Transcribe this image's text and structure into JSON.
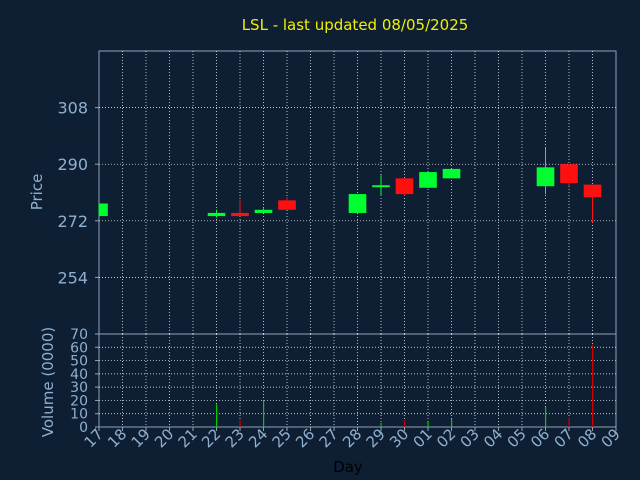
{
  "chart_data": {
    "type": "candlestick",
    "title": "LSL - last updated 08/05/2025",
    "xlabel": "Day",
    "x_ticks": [
      "17",
      "18",
      "19",
      "20",
      "21",
      "22",
      "23",
      "24",
      "25",
      "26",
      "27",
      "28",
      "29",
      "30",
      "01",
      "02",
      "03",
      "04",
      "05",
      "06",
      "07",
      "08",
      "09"
    ],
    "price_panel": {
      "ylabel": "Price",
      "ylim": [
        236,
        326
      ],
      "yticks": [
        "308",
        "290",
        "272",
        "254"
      ],
      "grid": true,
      "candles": [
        {
          "day": "17",
          "open": 273.5,
          "high": 277.5,
          "low": 273.5,
          "close": 277.5
        },
        {
          "day": "22",
          "open": 273.5,
          "high": 275.5,
          "low": 273.0,
          "close": 274.5
        },
        {
          "day": "23",
          "open": 274.5,
          "high": 278.5,
          "low": 273.5,
          "close": 273.5
        },
        {
          "day": "24",
          "open": 274.5,
          "high": 276.0,
          "low": 274.5,
          "close": 275.5
        },
        {
          "day": "25",
          "open": 278.5,
          "high": 279.5,
          "low": 275.5,
          "close": 275.5
        },
        {
          "day": "28",
          "open": 274.5,
          "high": 280.5,
          "low": 274.5,
          "close": 280.5
        },
        {
          "day": "29",
          "open": 283.0,
          "high": 286.5,
          "low": 280.0,
          "close": 283.0
        },
        {
          "day": "30",
          "open": 285.5,
          "high": 285.5,
          "low": 280.0,
          "close": 280.5
        },
        {
          "day": "01",
          "open": 282.5,
          "high": 287.5,
          "low": 282.5,
          "close": 287.5
        },
        {
          "day": "02",
          "open": 285.5,
          "high": 288.5,
          "low": 285.5,
          "close": 288.5
        },
        {
          "day": "06",
          "open": 283.0,
          "high": 295.5,
          "low": 280.5,
          "close": 289.0
        },
        {
          "day": "07",
          "open": 290.0,
          "high": 290.0,
          "low": 283.0,
          "close": 284.0
        },
        {
          "day": "08",
          "open": 283.5,
          "high": 283.5,
          "low": 271.5,
          "close": 279.5
        }
      ]
    },
    "volume_panel": {
      "ylabel": "Volume (0000)",
      "ylim": [
        0,
        70
      ],
      "yticks": [
        "70",
        "60",
        "50",
        "40",
        "30",
        "20",
        "10",
        "0"
      ],
      "grid": true,
      "bars": [
        {
          "day": "22",
          "value": 17,
          "color": "#00cc00"
        },
        {
          "day": "23",
          "value": 5,
          "color": "#cc0000"
        },
        {
          "day": "24",
          "value": 20,
          "color": "#00cc00"
        },
        {
          "day": "29",
          "value": 3,
          "color": "#00cc00"
        },
        {
          "day": "30",
          "value": 5,
          "color": "#cc0000"
        },
        {
          "day": "01",
          "value": 4,
          "color": "#00cc00"
        },
        {
          "day": "02",
          "value": 6,
          "color": "#00cc00"
        },
        {
          "day": "06",
          "value": 15,
          "color": "#00cc00"
        },
        {
          "day": "07",
          "value": 7,
          "color": "#cc0000"
        },
        {
          "day": "08",
          "value": 62,
          "color": "#cc0000"
        }
      ]
    },
    "colors": {
      "up": "#00ff30",
      "down": "#ff1010",
      "background": "#0f1f33",
      "axis_text": "#8fb0d0",
      "title": "#f0f000",
      "grid": "#ffffff"
    }
  }
}
